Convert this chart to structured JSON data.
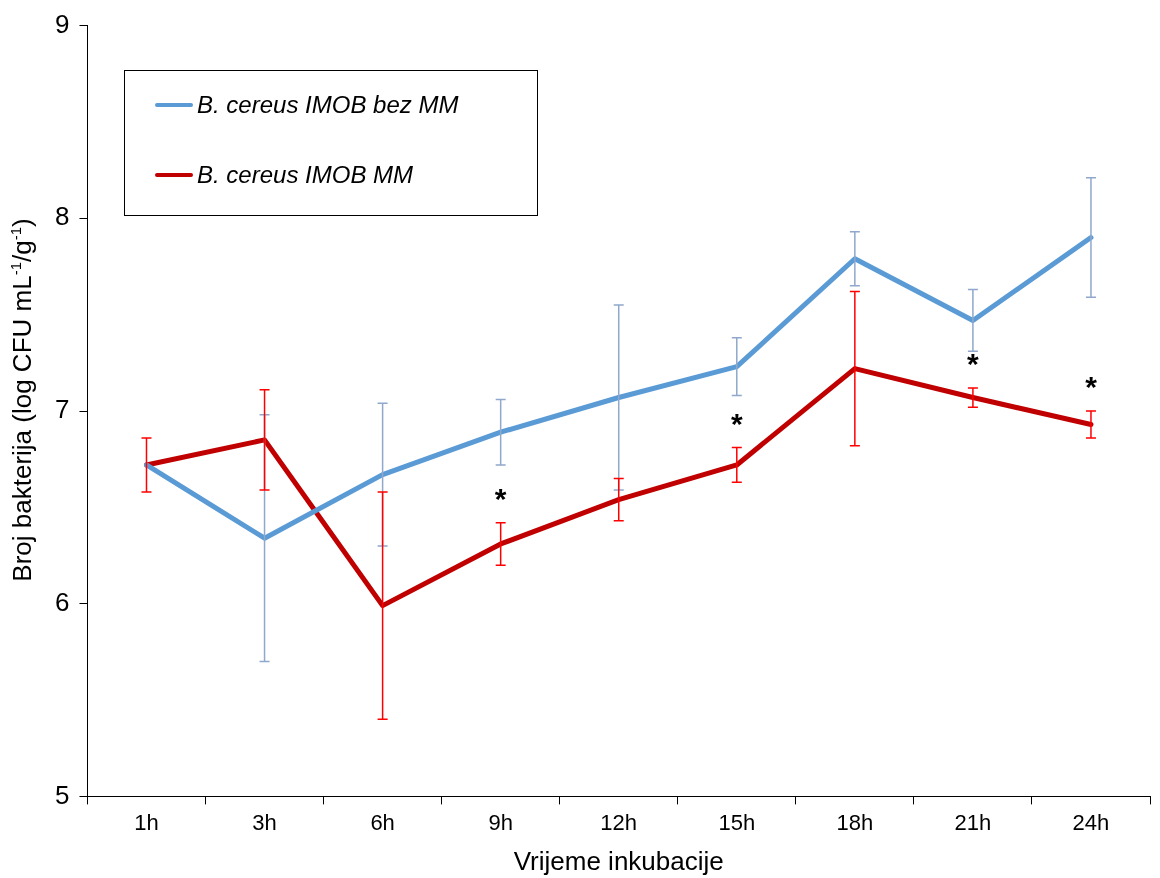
{
  "chart_data": {
    "type": "line",
    "xlabel": "Vrijeme inkubacije",
    "ylabel": "Broj bakterija (log CFU mL$^{-1}$/g$^{-1}$)",
    "categories": [
      "1h",
      "3h",
      "6h",
      "9h",
      "12h",
      "15h",
      "18h",
      "21h",
      "24h"
    ],
    "series": [
      {
        "name": "B. cereus IMOB bez MM",
        "color": "#5b9bd5",
        "values": [
          6.72,
          6.34,
          6.67,
          6.89,
          7.07,
          7.23,
          7.79,
          7.47,
          7.9
        ],
        "errors": [
          null,
          0.64,
          0.37,
          0.17,
          0.48,
          0.15,
          0.14,
          0.16,
          0.31
        ]
      },
      {
        "name": "B. cereus IMOB MM",
        "color": "#c00000",
        "values": [
          6.72,
          6.85,
          5.99,
          6.31,
          6.54,
          6.72,
          7.22,
          7.07,
          6.93
        ],
        "errors": [
          0.14,
          0.26,
          0.59,
          0.11,
          0.11,
          0.09,
          0.4,
          0.05,
          0.07
        ]
      }
    ],
    "ylim": [
      5,
      9
    ],
    "yticks": [
      5,
      6,
      7,
      8,
      9
    ],
    "grid": false,
    "legend": "top left",
    "marker": "none",
    "line_style": "solid",
    "annotations": [
      {
        "text": "*",
        "x": "9h",
        "y": 6.31
      },
      {
        "text": "*",
        "x": "15h",
        "y": 6.72
      },
      {
        "text": "*",
        "x": "21h",
        "y": 7.07
      },
      {
        "text": "*",
        "x": "24h",
        "y": 6.93
      }
    ]
  }
}
